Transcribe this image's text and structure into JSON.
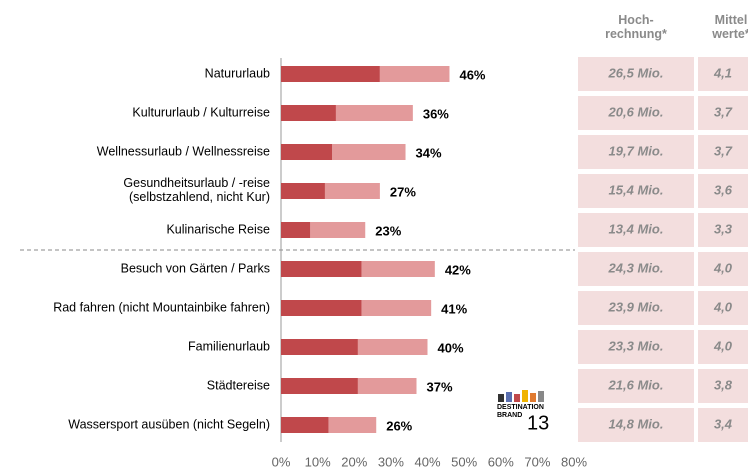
{
  "chart_data": {
    "type": "stacked-barh",
    "categories": [
      "Natururlaub",
      "Kultururlaub / Kulturreise",
      "Wellnessurlaub / Wellnessreise",
      "Gesundheitsurlaub / -reise\n(selbstzahlend, nicht Kur)",
      "Kulinarische Reise",
      "Besuch von Gärten / Parks",
      "Rad fahren (nicht Mountainbike fahren)",
      "Familienurlaub",
      "Städtereise",
      "Wassersport ausüben (nicht Segeln)"
    ],
    "series": [
      {
        "color": "#c0484b",
        "values": [
          27,
          15,
          14,
          12,
          8,
          22,
          22,
          21,
          21,
          13
        ]
      },
      {
        "color": "#e39a9b",
        "values": [
          19,
          21,
          20,
          15,
          15,
          20,
          19,
          19,
          16,
          13
        ]
      }
    ],
    "totals": [
      46,
      36,
      34,
      27,
      23,
      42,
      41,
      40,
      37,
      26
    ],
    "total_labels": [
      "46%",
      "36%",
      "34%",
      "27%",
      "23%",
      "42%",
      "41%",
      "40%",
      "37%",
      "26%"
    ],
    "xlim": [
      0,
      80
    ],
    "xticks": [
      {
        "value": 0,
        "label": "0%"
      },
      {
        "value": 10,
        "label": "10%"
      },
      {
        "value": 20,
        "label": "20%"
      },
      {
        "value": 30,
        "label": "30%"
      },
      {
        "value": 40,
        "label": "40%"
      },
      {
        "value": 50,
        "label": "50%"
      },
      {
        "value": 60,
        "label": "60%"
      },
      {
        "value": 70,
        "label": "70%"
      },
      {
        "value": 80,
        "label": "80%"
      }
    ]
  },
  "table": {
    "headers": [
      "Hoch-\nrechnung*",
      "Mittel\nwerte*"
    ],
    "rows": [
      [
        "26,5 Mio.",
        "4,1"
      ],
      [
        "20,6 Mio.",
        "3,7"
      ],
      [
        "19,7 Mio.",
        "3,7"
      ],
      [
        "15,4 Mio.",
        "3,6"
      ],
      [
        "13,4 Mio.",
        "3,3"
      ],
      [
        "24,3 Mio.",
        "4,0"
      ],
      [
        "23,9 Mio.",
        "4,0"
      ],
      [
        "23,3 Mio.",
        "4,0"
      ],
      [
        "21,6 Mio.",
        "3,8"
      ],
      [
        "14,8 Mio.",
        "3,4"
      ]
    ]
  },
  "logo": {
    "line1": "DESTINATION",
    "line2": "BRAND",
    "number": "13"
  }
}
